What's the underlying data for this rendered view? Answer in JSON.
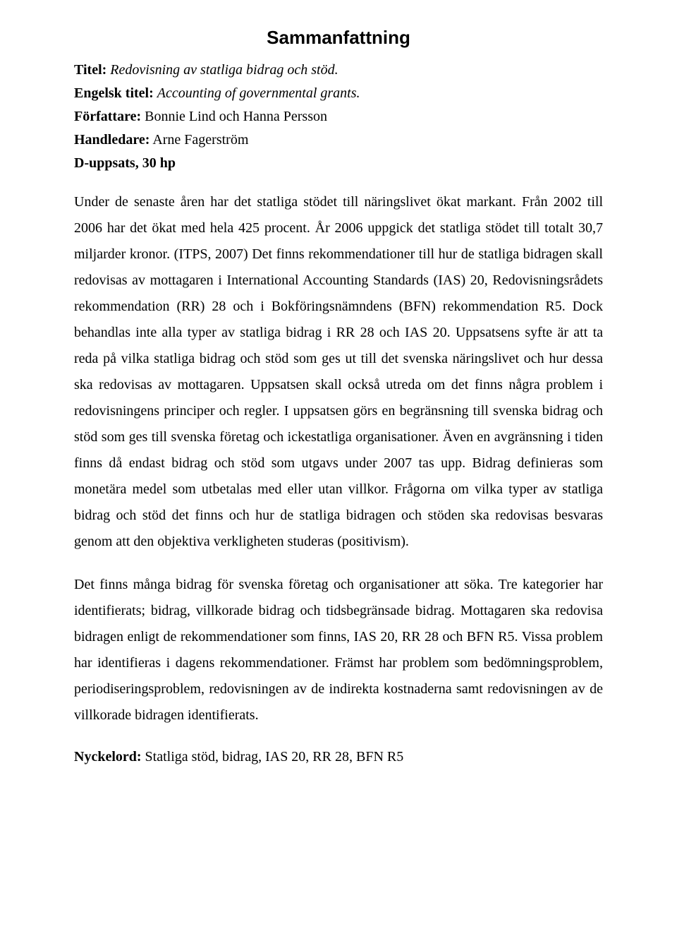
{
  "title": "Sammanfattning",
  "meta": {
    "titel_label": "Titel:",
    "titel_value": "Redovisning av statliga bidrag och stöd.",
    "engelsk_label": "Engelsk titel:",
    "engelsk_value": "Accounting of governmental grants.",
    "forfattare_label": "Författare:",
    "forfattare_value": "Bonnie Lind och Hanna Persson",
    "handledare_label": "Handledare:",
    "handledare_value": "Arne Fagerström",
    "uppsats_label": "D-uppsats, 30 hp"
  },
  "paragraphs": {
    "p1": "Under de senaste åren har det statliga stödet till näringslivet ökat markant. Från 2002 till 2006 har det ökat med hela 425 procent. År 2006 uppgick det statliga stödet till totalt 30,7 miljarder kronor. (ITPS, 2007) Det finns rekommendationer till hur de statliga bidragen skall redovisas av mottagaren i International Accounting Standards (IAS) 20, Redovisningsrådets rekommendation (RR) 28 och i Bokföringsnämndens (BFN) rekommendation R5. Dock behandlas inte alla typer av statliga bidrag i RR 28 och IAS 20. Uppsatsens syfte är att ta reda på vilka statliga bidrag och stöd som ges ut till det svenska näringslivet och hur dessa ska redovisas av mottagaren. Uppsatsen skall också utreda om det finns några problem i redovisningens principer och regler. I uppsatsen görs en begränsning till svenska bidrag och stöd som ges till svenska företag och ickestatliga organisationer. Även en avgränsning i tiden finns då endast bidrag och stöd som utgavs under 2007 tas upp. Bidrag definieras som monetära medel som utbetalas med eller utan villkor. Frågorna om vilka typer av statliga bidrag och stöd det finns och hur de statliga bidragen och stöden ska redovisas besvaras genom att den objektiva verkligheten studeras (positivism).",
    "p2": "Det finns många bidrag för svenska företag och organisationer att söka. Tre kategorier har identifierats; bidrag, villkorade bidrag och tidsbegränsade bidrag. Mottagaren ska redovisa bidragen enligt de rekommendationer som finns, IAS 20, RR 28 och BFN R5. Vissa problem har identifieras i dagens rekommendationer. Främst har problem som bedömningsproblem, periodiseringsproblem, redovisningen av de indirekta kostnaderna samt redovisningen av de villkorade bidragen identifierats."
  },
  "keywords": {
    "label": "Nyckelord:",
    "value": "Statliga stöd, bidrag, IAS 20, RR 28, BFN R5"
  }
}
